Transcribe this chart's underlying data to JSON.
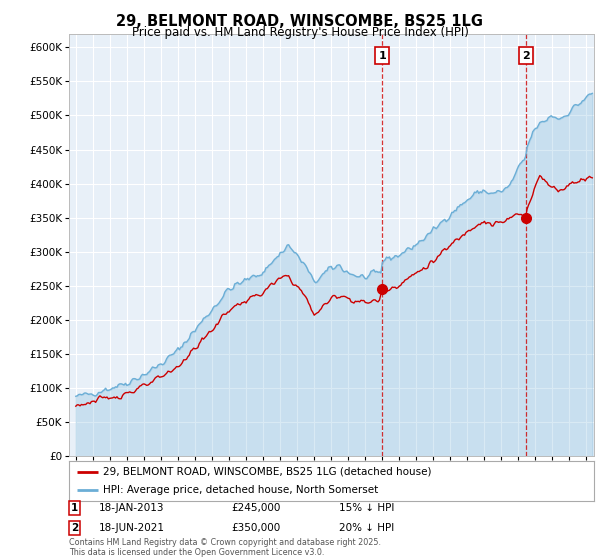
{
  "title": "29, BELMONT ROAD, WINSCOMBE, BS25 1LG",
  "subtitle": "Price paid vs. HM Land Registry's House Price Index (HPI)",
  "legend_line1": "29, BELMONT ROAD, WINSCOMBE, BS25 1LG (detached house)",
  "legend_line2": "HPI: Average price, detached house, North Somerset",
  "annotation1_label": "1",
  "annotation1_date": "18-JAN-2013",
  "annotation1_price": 245000,
  "annotation1_text": "15% ↓ HPI",
  "annotation2_label": "2",
  "annotation2_date": "18-JUN-2021",
  "annotation2_price": 350000,
  "annotation2_text": "20% ↓ HPI",
  "footer": "Contains HM Land Registry data © Crown copyright and database right 2025.\nThis data is licensed under the Open Government Licence v3.0.",
  "hpi_color": "#6baed6",
  "price_color": "#cc0000",
  "annotation_line_color": "#cc0000",
  "background_color": "#ffffff",
  "plot_bg_color": "#e8f0f8",
  "ylim": [
    0,
    620000
  ],
  "yticks": [
    0,
    50000,
    100000,
    150000,
    200000,
    250000,
    300000,
    350000,
    400000,
    450000,
    500000,
    550000,
    600000
  ],
  "purchase1_x": 2013.05,
  "purchase1_y": 245000,
  "purchase2_x": 2021.47,
  "purchase2_y": 350000,
  "xmin": 1994.6,
  "xmax": 2025.5
}
